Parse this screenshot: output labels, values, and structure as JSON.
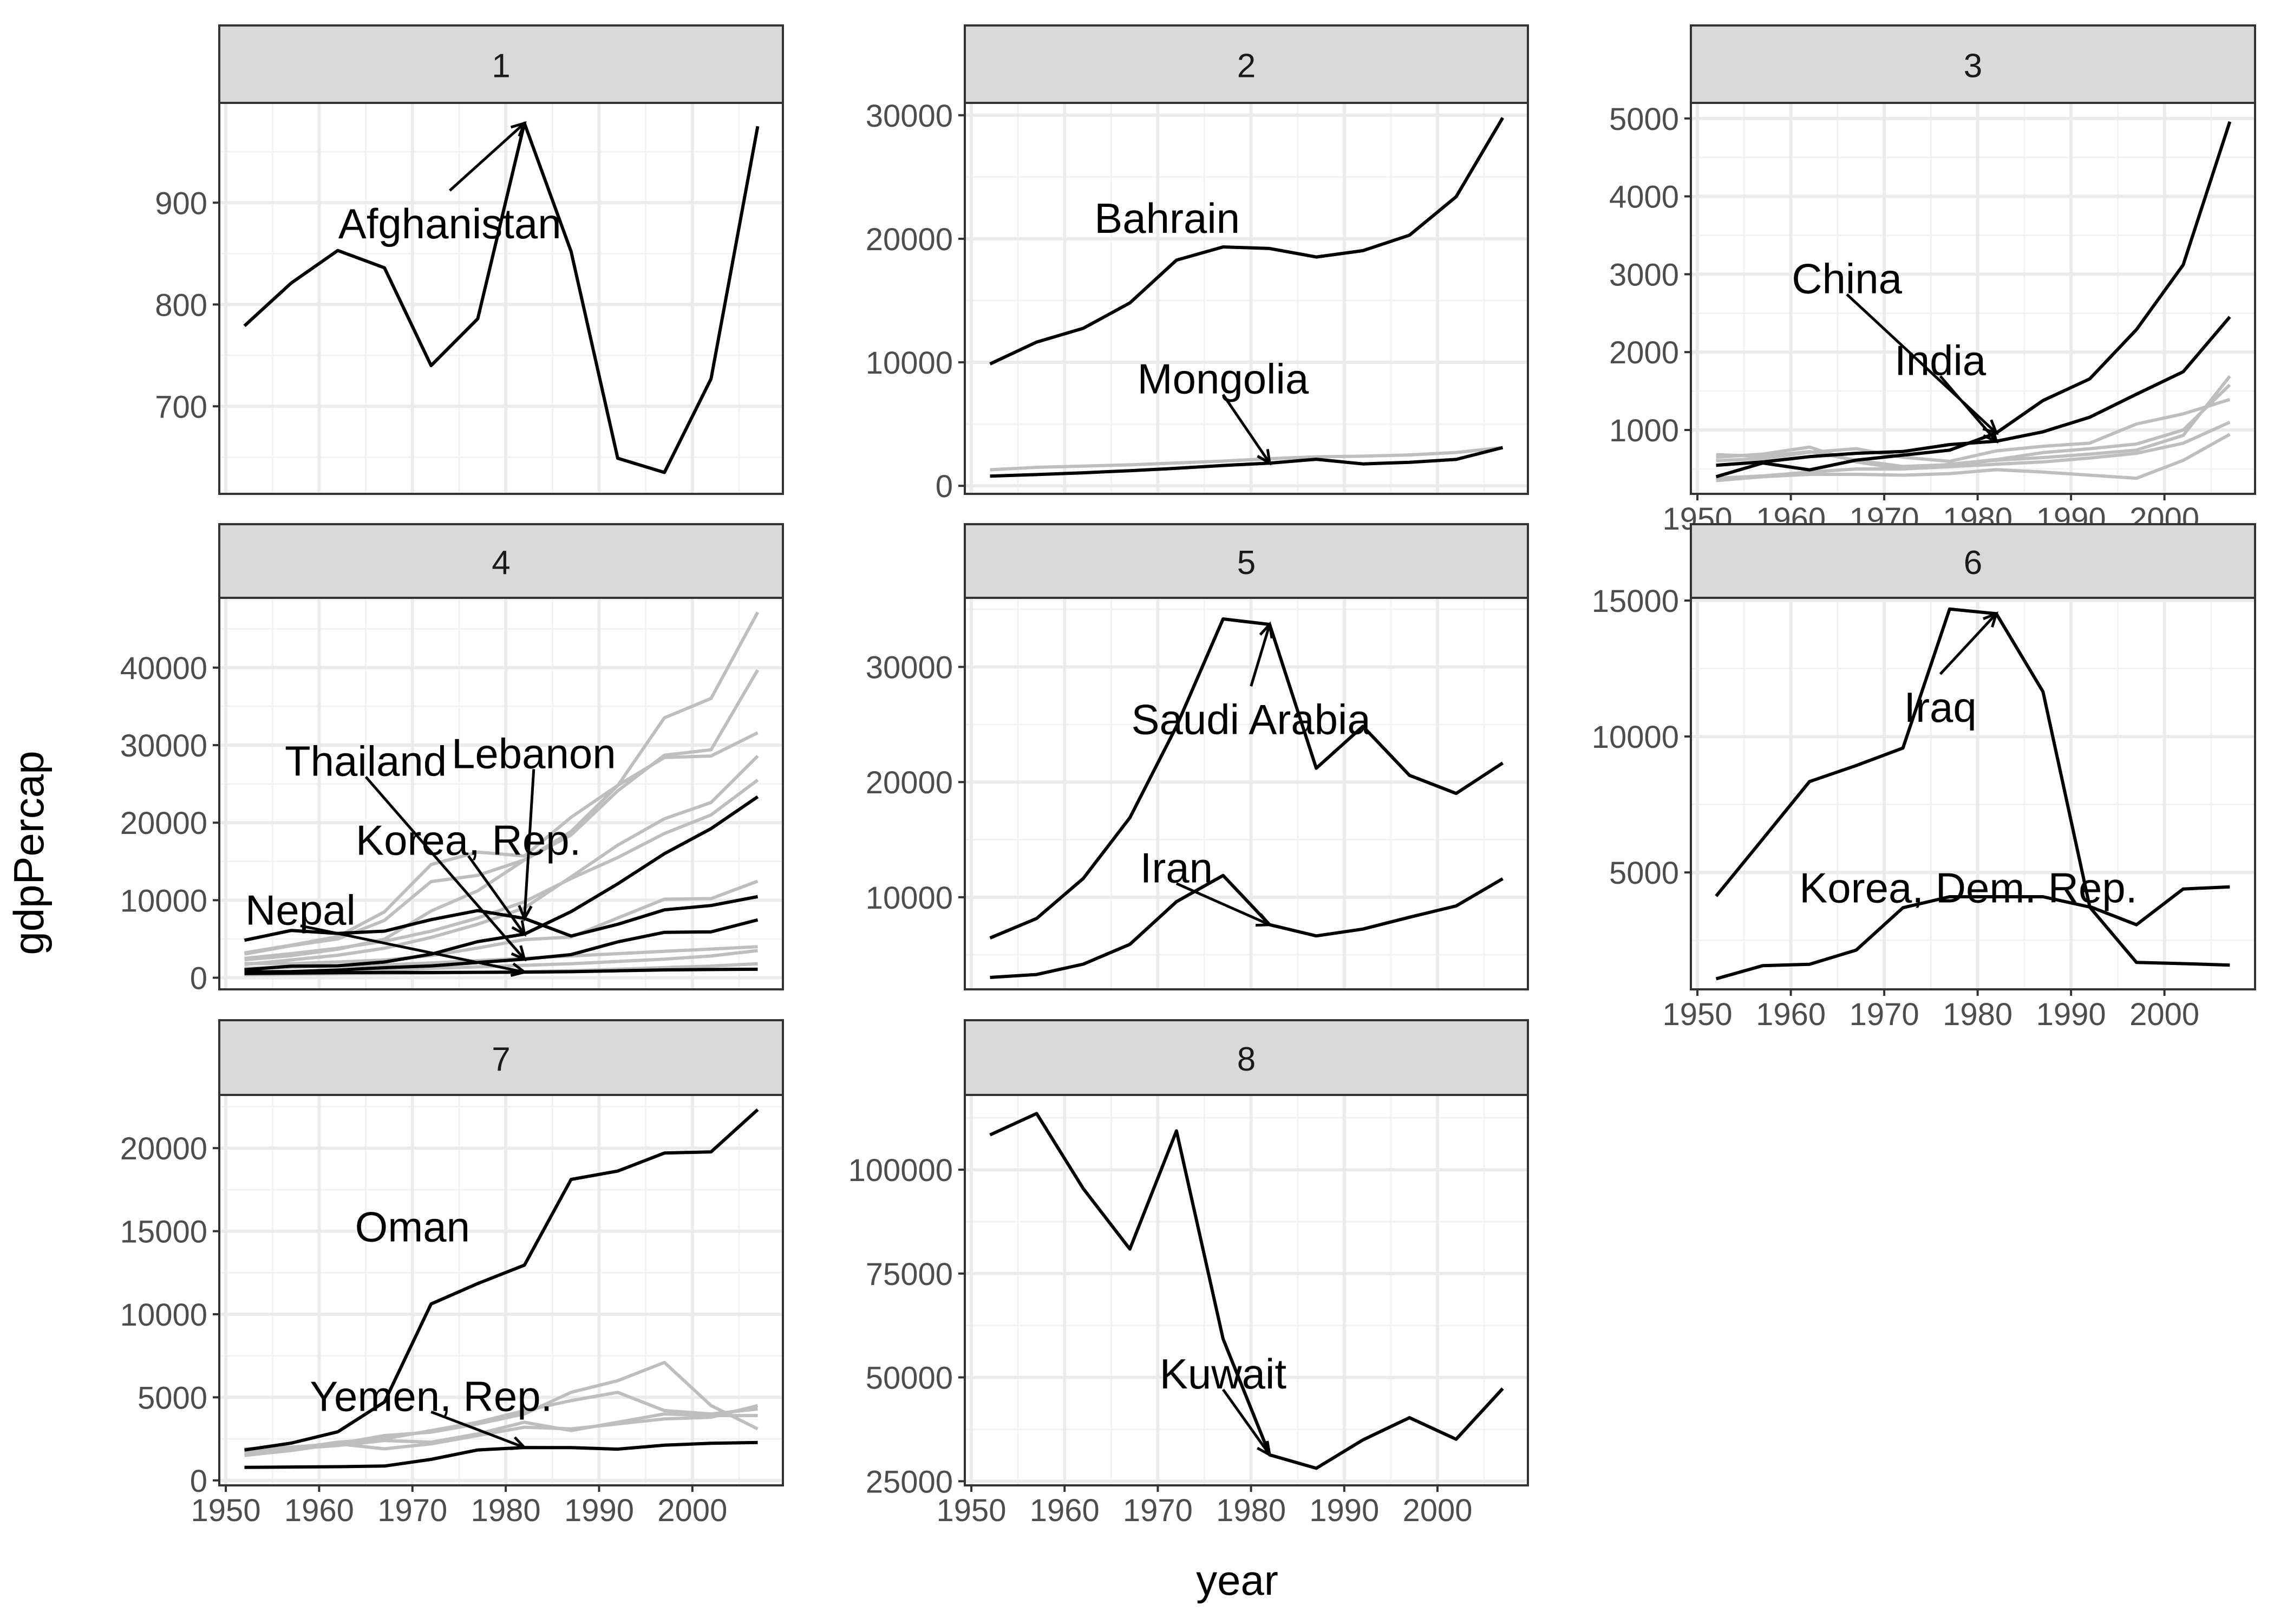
{
  "chart_data": {
    "type": "line",
    "xlabel": "year",
    "ylabel": "gdpPercap",
    "xlim": [
      1949.3,
      2009.7
    ],
    "xticks": [
      1950,
      1960,
      1970,
      1980,
      1990,
      2000
    ],
    "years": [
      1952,
      1957,
      1962,
      1967,
      1972,
      1977,
      1982,
      1987,
      1992,
      1997,
      2002,
      2007
    ],
    "highlight_color": "#000000",
    "background_color": "#d9d9d9",
    "panels": [
      {
        "label": "1",
        "ylim": [
          614,
          998
        ],
        "yticks": [
          700,
          800,
          900
        ],
        "series": [
          {
            "name": "Afghanistan",
            "highlight": true,
            "values": [
              779,
              821,
              853,
              836,
              740,
              786,
              978,
              852,
              649,
              635,
              727,
              975
            ]
          }
        ],
        "annotations": [
          {
            "text": "Afghanistan",
            "x": 1974,
            "y": 880,
            "target_x": 1982,
            "target_y": 978
          }
        ]
      },
      {
        "label": "2",
        "ylim": [
          -650,
          31000
        ],
        "yticks": [
          0,
          10000,
          20000,
          30000
        ],
        "series": [
          {
            "name": "Bahrain",
            "highlight": true,
            "values": [
              9867,
              11636,
              12753,
              14805,
              18269,
              19340,
              19211,
              18524,
              19036,
              20292,
              23404,
              29796
            ]
          },
          {
            "name": "Mongolia",
            "highlight": true,
            "values": [
              787,
              912,
              1056,
              1226,
              1421,
              1648,
              1842,
              2153,
              1776,
              1902,
              2140,
              3096
            ]
          },
          {
            "name": "",
            "highlight": false,
            "values": [
              1300,
              1500,
              1600,
              1700,
              1850,
              2000,
              2200,
              2350,
              2400,
              2500,
              2700,
              3100
            ]
          }
        ],
        "annotations": [
          {
            "text": "Bahrain",
            "x": 1971,
            "y": 21700
          },
          {
            "text": "Mongolia",
            "x": 1977,
            "y": 8700,
            "target_x": 1982,
            "target_y": 1842
          }
        ]
      },
      {
        "label": "3",
        "ylim": [
          180,
          5200
        ],
        "yticks": [
          1000,
          2000,
          3000,
          4000,
          5000
        ],
        "series": [
          {
            "name": "China",
            "highlight": true,
            "values": [
              400,
              576,
              488,
              613,
              677,
              741,
              962,
              1379,
              1656,
              2289,
              3119,
              4959
            ]
          },
          {
            "name": "India",
            "highlight": true,
            "values": [
              547,
              590,
              658,
              701,
              724,
              813,
              856,
              977,
              1164,
              1459,
              1747,
              2452
            ]
          },
          {
            "name": "",
            "highlight": false,
            "values": [
              684,
              661,
              722,
              612,
              532,
              555,
              612,
              646,
              690,
              742,
              930,
              1691
            ]
          },
          {
            "name": "",
            "highlight": false,
            "values": [
              605,
              634,
              713,
              760,
              650,
              598,
              732,
              791,
              831,
              1077,
              1207,
              1391
            ]
          },
          {
            "name": "",
            "highlight": false,
            "values": [
              350,
              400,
              430,
              430,
              420,
              440,
              490,
              460,
              420,
              380,
              610,
              945
            ]
          },
          {
            "name": "",
            "highlight": false,
            "values": [
              650,
              690,
              780,
              590,
              500,
              560,
              620,
              710,
              760,
              820,
              1000,
              1580
            ]
          },
          {
            "name": "",
            "highlight": false,
            "values": [
              380,
              410,
              460,
              500,
              500,
              530,
              560,
              590,
              640,
              700,
              830,
              1100
            ]
          }
        ],
        "annotations": [
          {
            "text": "China",
            "x": 1966,
            "y": 2950,
            "target_x": 1982,
            "target_y": 962
          },
          {
            "text": "India",
            "x": 1976,
            "y": 1900,
            "target_x": 1982,
            "target_y": 856
          }
        ]
      },
      {
        "label": "4",
        "ylim": [
          -1500,
          49000
        ],
        "yticks": [
          0,
          10000,
          20000,
          30000,
          40000
        ],
        "series": [
          {
            "name": "Thailand",
            "highlight": true,
            "values": [
              757,
              793,
              1002,
              1296,
              1524,
              1961,
              2393,
              2982,
              4616,
              5852,
              5914,
              7458
            ]
          },
          {
            "name": "Lebanon",
            "highlight": true,
            "values": [
              4834,
              6090,
              5716,
              6006,
              7486,
              8659,
              7641,
              5377,
              6891,
              8755,
              9314,
              10461
            ]
          },
          {
            "name": "Korea, Rep.",
            "highlight": true,
            "values": [
              1031,
              1488,
              1536,
              2029,
              3031,
              4657,
              5623,
              8533,
              12104,
              15994,
              19234,
              23348
            ]
          },
          {
            "name": "Nepal",
            "highlight": true,
            "values": [
              546,
              598,
              652,
              676,
              674,
              695,
              719,
              776,
              897,
              1011,
              1058,
              1091
            ]
          },
          {
            "name": "",
            "highlight": false,
            "values": [
              3054,
              4129,
              5000,
              7400,
              12400,
              13200,
              15200,
              18400,
              24100,
              28700,
              29400,
              39700
            ]
          },
          {
            "name": "",
            "highlight": false,
            "values": [
              3200,
              4200,
              5300,
              8500,
              14600,
              16200,
              15700,
              20700,
              24800,
              28400,
              28600,
              31600
            ]
          },
          {
            "name": "",
            "highlight": false,
            "values": [
              2315,
              2843,
              3675,
              4977,
              8597,
              11211,
              15170,
              18862,
              24769,
              33519,
              36023,
              47143
            ]
          },
          {
            "name": "",
            "highlight": false,
            "values": [
              1700,
              2300,
              2900,
              3800,
              5200,
              6900,
              9000,
              13000,
              17100,
              20500,
              22600,
              28600
            ]
          },
          {
            "name": "",
            "highlight": false,
            "values": [
              2500,
              3100,
              3800,
              4700,
              6000,
              7700,
              9800,
              12800,
              15500,
              18600,
              21000,
              25500
            ]
          },
          {
            "name": "",
            "highlight": false,
            "values": [
              1831,
              1810,
              2037,
              2277,
              2849,
              3828,
              4920,
              5249,
              7703,
              10132,
              10207,
              12452
            ]
          },
          {
            "name": "",
            "highlight": false,
            "values": [
              1200,
              1350,
              1500,
              1650,
              1900,
              2200,
              2500,
              2800,
              3100,
              3400,
              3700,
              4000
            ]
          },
          {
            "name": "",
            "highlight": false,
            "values": [
              750,
              800,
              900,
              1000,
              1200,
              1400,
              1600,
              1800,
              2100,
              2400,
              2800,
              3500
            ]
          },
          {
            "name": "",
            "highlight": false,
            "values": [
              400,
              450,
              500,
              550,
              600,
              700,
              800,
              900,
              1100,
              1300,
              1500,
              1800
            ]
          }
        ],
        "annotations": [
          {
            "text": "Thailand",
            "x": 1965,
            "y": 28000,
            "target_x": 1982,
            "target_y": 2393
          },
          {
            "text": "Lebanon",
            "x": 1983,
            "y": 29000,
            "target_x": 1982,
            "target_y": 7641
          },
          {
            "text": "Korea, Rep.",
            "x": 1976,
            "y": 17800,
            "target_x": 1982,
            "target_y": 5623
          },
          {
            "text": "Nepal",
            "x": 1958,
            "y": 8800,
            "target_x": 1982,
            "target_y": 719
          }
        ]
      },
      {
        "label": "5",
        "ylim": [
          2000,
          36000
        ],
        "yticks": [
          10000,
          20000,
          30000
        ],
        "series": [
          {
            "name": "Saudi Arabia",
            "highlight": true,
            "values": [
              6459,
              8157,
              11626,
              16903,
              24837,
              34168,
              33693,
              21199,
              24841,
              20586,
              19014,
              21655
            ]
          },
          {
            "name": "Iran",
            "highlight": true,
            "values": [
              3035,
              3290,
              4187,
              5907,
              9613,
              11888,
              7608,
              6643,
              7235,
              8263,
              9241,
              11606
            ]
          }
        ],
        "annotations": [
          {
            "text": "Saudi Arabia",
            "x": 1980,
            "y": 25500,
            "target_x": 1982,
            "target_y": 33693
          },
          {
            "text": "Iran",
            "x": 1972,
            "y": 12600,
            "target_x": 1982,
            "target_y": 7608
          }
        ]
      },
      {
        "label": "6",
        "ylim": [
          700,
          15100
        ],
        "yticks": [
          5000,
          10000,
          15000
        ],
        "series": [
          {
            "name": "Iraq",
            "highlight": true,
            "values": [
              4130,
              6229,
              8342,
              8931,
              9576,
              14688,
              14517,
              11644,
              3746,
              3077,
              4391,
              4471
            ]
          },
          {
            "name": "Korea, Dem. Rep.",
            "highlight": true,
            "values": [
              1088,
              1572,
              1622,
              2144,
              3702,
              4106,
              4106,
              4106,
              3727,
              1691,
              1647,
              1593
            ]
          }
        ],
        "annotations": [
          {
            "text": "Iraq",
            "x": 1976,
            "y": 11100,
            "target_x": 1982,
            "target_y": 14517
          },
          {
            "text": "Korea, Dem. Rep.",
            "x": 1979,
            "y": 4450
          }
        ]
      },
      {
        "label": "7",
        "ylim": [
          -300,
          23200
        ],
        "yticks": [
          0,
          5000,
          10000,
          15000,
          20000
        ],
        "series": [
          {
            "name": "Oman",
            "highlight": true,
            "values": [
              1828,
              2243,
              2924,
              4721,
              10618,
              11848,
              12955,
              18115,
              18617,
              19702,
              19775,
              22316
            ]
          },
          {
            "name": "Yemen, Rep.",
            "highlight": true,
            "values": [
              782,
              805,
              826,
              862,
              1265,
              1830,
              1978,
              1972,
              1879,
              2117,
              2235,
              2281
            ]
          },
          {
            "name": "",
            "highlight": false,
            "values": [
              1600,
              1900,
              2300,
              2500,
              3000,
              3500,
              4200,
              4800,
              5300,
              4200,
              4000,
              4300
            ]
          },
          {
            "name": "",
            "highlight": false,
            "values": [
              1500,
              1800,
              2200,
              2700,
              2900,
              3400,
              4000,
              5300,
              6000,
              7100,
              4500,
              3100
            ]
          },
          {
            "name": "",
            "highlight": false,
            "values": [
              1900,
              2000,
              2200,
              1900,
              2200,
              2700,
              3200,
              3100,
              3400,
              3700,
              3800,
              4500
            ]
          },
          {
            "name": "",
            "highlight": false,
            "values": [
              1700,
              1900,
              2100,
              2400,
              2300,
              2800,
              3500,
              3000,
              3500,
              4000,
              3900,
              3900
            ]
          }
        ],
        "annotations": [
          {
            "text": "Oman",
            "x": 1970,
            "y": 15300
          },
          {
            "text": "Yemen, Rep.",
            "x": 1972,
            "y": 5100,
            "target_x": 1982,
            "target_y": 1978
          }
        ]
      },
      {
        "label": "8",
        "ylim": [
          24000,
          118000
        ],
        "yticks": [
          25000,
          50000,
          75000,
          100000
        ],
        "series": [
          {
            "name": "Kuwait",
            "highlight": true,
            "values": [
              108382,
              113523,
              95458,
              80895,
              109348,
              59265,
              31354,
              28118,
              34933,
              40301,
              35110,
              47307
            ]
          }
        ],
        "annotations": [
          {
            "text": "Kuwait",
            "x": 1977,
            "y": 51000,
            "target_x": 1982,
            "target_y": 31354
          }
        ]
      }
    ]
  }
}
